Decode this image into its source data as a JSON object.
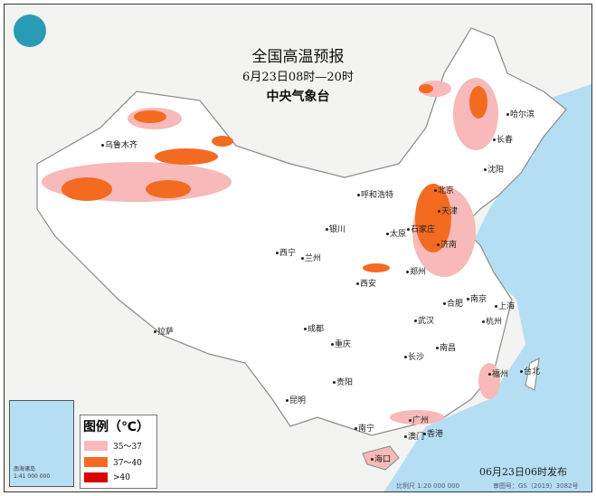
{
  "header": {
    "title": "全国高温预报",
    "period": "6月23日08时—20时",
    "agency": "中央气象台"
  },
  "legend": {
    "title": "图例（℃）",
    "items": [
      {
        "label": "35～37",
        "color": "#f7b9b9"
      },
      {
        "label": "37～40",
        "color": "#f26b21"
      },
      {
        "label": ">40",
        "color": "#d90000"
      }
    ]
  },
  "cities": [
    "乌鲁木齐",
    "哈尔滨",
    "长春",
    "沈阳",
    "呼和浩特",
    "北京",
    "天津",
    "石家庄",
    "太原",
    "济南",
    "银川",
    "西宁",
    "兰州",
    "郑州",
    "西安",
    "合肥",
    "南京",
    "上海",
    "武汉",
    "杭州",
    "成都",
    "拉萨",
    "重庆",
    "南昌",
    "长沙",
    "福州",
    "贵阳",
    "台北",
    "昆明",
    "南宁",
    "广州",
    "香港",
    "澳门",
    "海口"
  ],
  "inset": {
    "label1": "南海诸岛",
    "scale": "1:41 000 000"
  },
  "footer": {
    "issued": "06月23日06时发布",
    "scale": "比例尺 1:20 000 000",
    "map_no": "审图号：GS（2019）3082号"
  },
  "colors": {
    "sea": "#b5def3",
    "land": "#f3f3f1",
    "china": "#ffffff"
  }
}
